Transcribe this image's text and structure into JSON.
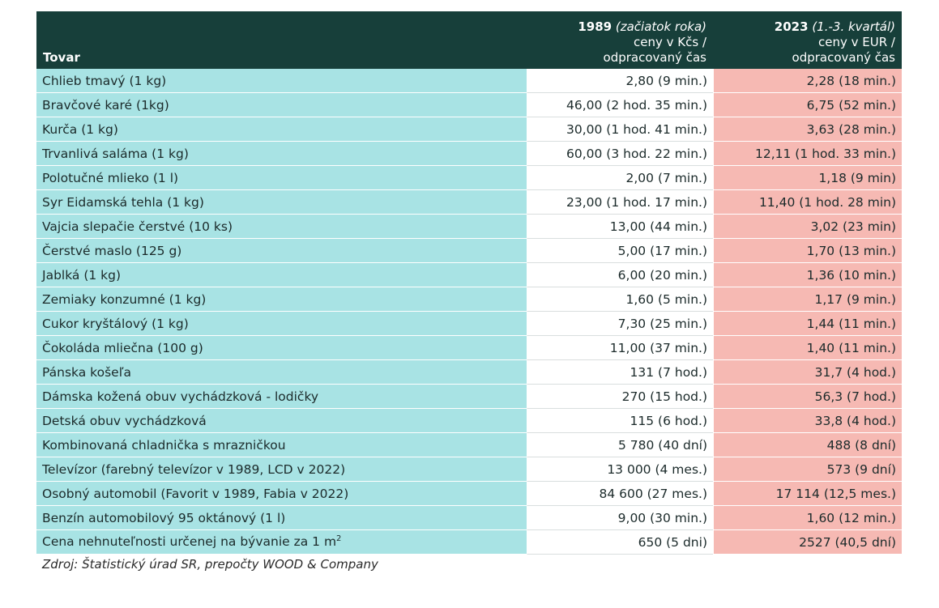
{
  "header": {
    "col_item": "Tovar",
    "col_1989_year": "1989",
    "col_1989_note": "(začiatok roka)",
    "col_1989_sub1": "ceny v Kčs /",
    "col_1989_sub2": "odpracovaný čas",
    "col_2023_year": "2023",
    "col_2023_note": "(1.-3. kvartál)",
    "col_2023_sub1": "ceny v EUR /",
    "col_2023_sub2": "odpracovaný čas"
  },
  "rows": [
    {
      "item": "Chlieb tmavý (1 kg)",
      "v1989": "2,80 (9 min.)",
      "v2023": "2,28 (18 min.)"
    },
    {
      "item": "Bravčové karé (1kg)",
      "v1989": "46,00 (2 hod. 35 min.)",
      "v2023": "6,75 (52 min.)"
    },
    {
      "item": "Kurča (1 kg)",
      "v1989": "30,00 (1 hod. 41 min.)",
      "v2023": "3,63 (28 min.)"
    },
    {
      "item": "Trvanlivá saláma (1 kg)",
      "v1989": "60,00 (3 hod. 22 min.)",
      "v2023": "12,11 (1 hod. 33 min.)"
    },
    {
      "item": "Polotučné mlieko (1 l)",
      "v1989": "2,00 (7 min.)",
      "v2023": "1,18 (9 min)"
    },
    {
      "item": "Syr Eidamská tehla (1 kg)",
      "v1989": "23,00 (1 hod. 17 min.)",
      "v2023": "11,40 (1 hod. 28 min)"
    },
    {
      "item": "Vajcia slepačie čerstvé (10 ks)",
      "v1989": "13,00 (44 min.)",
      "v2023": "3,02 (23 min)"
    },
    {
      "item": "Čerstvé maslo (125 g)",
      "v1989": "5,00 (17 min.)",
      "v2023": "1,70 (13 min.)"
    },
    {
      "item": "Jablká (1 kg)",
      "v1989": "6,00 (20 min.)",
      "v2023": "1,36 (10 min.)"
    },
    {
      "item": "Zemiaky konzumné (1 kg)",
      "v1989": "1,60 (5 min.)",
      "v2023": "1,17 (9 min.)"
    },
    {
      "item": "Cukor kryštálový (1 kg)",
      "v1989": "7,30 (25 min.)",
      "v2023": "1,44 (11 min.)"
    },
    {
      "item": "Čokoláda mliečna (100 g)",
      "v1989": "11,00 (37 min.)",
      "v2023": "1,40 (11 min.)"
    },
    {
      "item": "Pánska košeľa",
      "v1989": "131 (7 hod.)",
      "v2023": "31,7 (4 hod.)"
    },
    {
      "item": "Dámska kožená obuv vychádzková - lodičky",
      "v1989": "270 (15 hod.)",
      "v2023": "56,3 (7 hod.)"
    },
    {
      "item": "Detská obuv vychádzková",
      "v1989": "115 (6 hod.)",
      "v2023": "33,8 (4 hod.)"
    },
    {
      "item": "Kombinovaná chladnička s mrazničkou",
      "v1989": "5 780 (40 dní)",
      "v2023": "488 (8 dní)"
    },
    {
      "item": "Televízor (farebný televízor v 1989, LCD v 2022)",
      "v1989": "13 000 (4 mes.)",
      "v2023": "573 (9 dní)"
    },
    {
      "item": "Osobný automobil (Favorit v 1989, Fabia v 2022)",
      "v1989": "84 600 (27 mes.)",
      "v2023": "17 114 (12,5 mes.)"
    },
    {
      "item": "Benzín automobilový 95 oktánový (1 l)",
      "v1989": "9,00 (30 min.)",
      "v2023": "1,60 (12 min.)"
    },
    {
      "item": "Cena nehnuteľnosti určenej na bývanie za 1 m",
      "item_sup": "2",
      "v1989": "650 (5 dni)",
      "v2023": "2527 (40,5 dní)"
    }
  ],
  "source": "Zdroj: Štatistický úrad SR, prepočty WOOD & Company",
  "colors": {
    "header_bg": "#173f3a",
    "item_col": "#a8e3e4",
    "col_2023": "#f6b9b3"
  }
}
